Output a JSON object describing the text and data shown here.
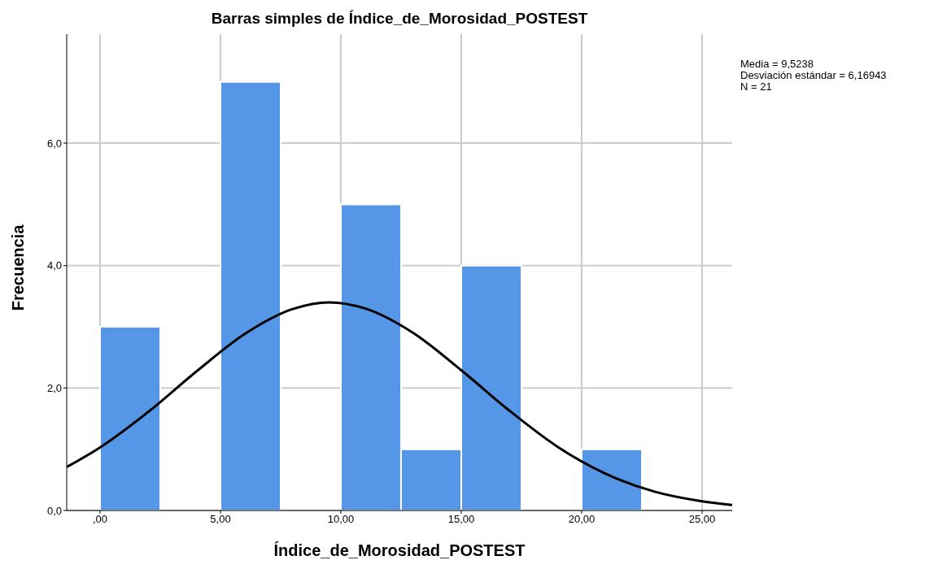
{
  "chart_data": {
    "type": "histogram",
    "title": "Barras simples de Índice_de_Morosidad_POSTEST",
    "xlabel": "Índice_de_Morosidad_POSTEST",
    "ylabel": "Frecuencia",
    "bins": [
      0,
      2.5,
      5,
      7.5,
      10,
      12.5,
      15,
      17.5,
      20,
      22.5
    ],
    "values": [
      3,
      0,
      7,
      0,
      5,
      1,
      4,
      0,
      1
    ],
    "color": "#5596e6",
    "series": [
      {
        "type": "line",
        "color": "#000000",
        "x": [
          -1.385,
          0,
          2,
          4,
          6,
          8,
          9.52,
          11,
          13,
          15,
          17,
          19,
          21,
          23,
          25,
          26.25
        ],
        "values": [
          0.71,
          1.03,
          1.61,
          2.27,
          2.88,
          3.29,
          3.4,
          3.3,
          2.9,
          2.29,
          1.63,
          1.04,
          0.6,
          0.31,
          0.15,
          0.09
        ]
      }
    ],
    "xlim": [
      -1.385,
      26.25
    ],
    "xticks": [
      {
        "value": 0,
        "label": ",00"
      },
      {
        "value": 5,
        "label": "5,00"
      },
      {
        "value": 10,
        "label": "10,00"
      },
      {
        "value": 15,
        "label": "15,00"
      },
      {
        "value": 20,
        "label": "20,00"
      },
      {
        "value": 25,
        "label": "25,00"
      }
    ],
    "ylim": [
      0,
      7.78
    ],
    "yticks": [
      {
        "value": 0,
        "label": "0,0"
      },
      {
        "value": 2,
        "label": "2,0"
      },
      {
        "value": 4,
        "label": "4,0"
      },
      {
        "value": 6,
        "label": "6,0"
      }
    ],
    "grid": true,
    "annotations": [
      "Media = 9,5238",
      "Desviación estándar = 6,16943",
      "N = 21"
    ]
  }
}
